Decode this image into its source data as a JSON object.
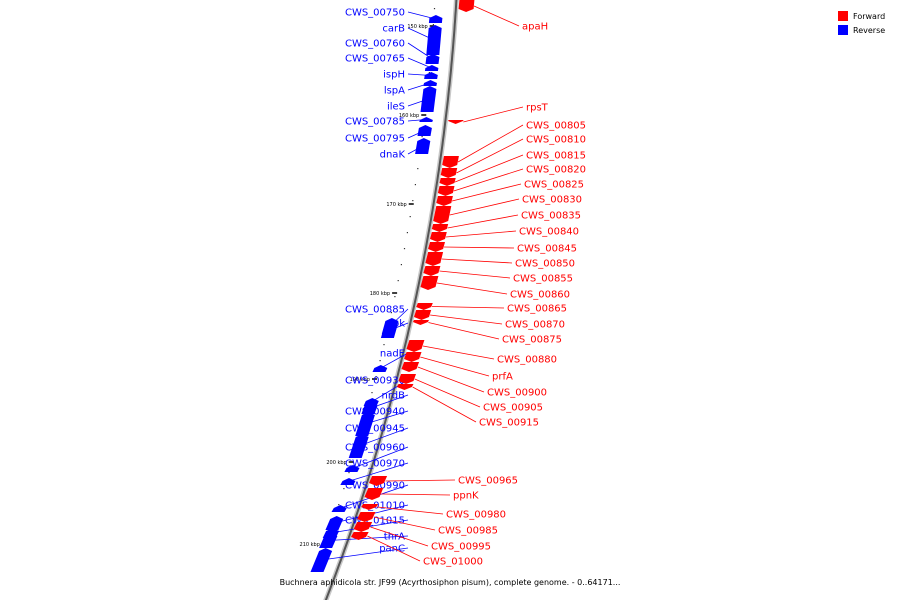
{
  "legend": {
    "forward_label": "Forward",
    "reverse_label": "Reverse",
    "forward_color": "#ff0000",
    "reverse_color": "#0000ff"
  },
  "caption": "Buchnera aphidicola str. JF99 (Acyrthosiphon pisum), complete genome. - 0..64171...",
  "ticks": [
    "150 kbp",
    "160 kbp",
    "170 kbp",
    "180 kbp",
    "190 kbp",
    "200 kbp",
    "210 kbp"
  ],
  "reverse_genes": [
    "CWS_00750",
    "carB",
    "CWS_00760",
    "CWS_00765",
    "ispH",
    "lspA",
    "ileS",
    "CWS_00785",
    "CWS_00795",
    "dnaK",
    "CWS_00885",
    "ipk",
    "nadE",
    "CWS_00930",
    "nrdB",
    "CWS_00940",
    "CWS_00945",
    "CWS_00960",
    "CWS_00970",
    "CWS_00990",
    "CWS_01010",
    "CWS_01015",
    "thrA",
    "panC"
  ],
  "forward_genes": [
    "apaH",
    "rpsT",
    "CWS_00805",
    "CWS_00810",
    "CWS_00815",
    "CWS_00820",
    "CWS_00825",
    "CWS_00830",
    "CWS_00835",
    "CWS_00840",
    "CWS_00845",
    "CWS_00850",
    "CWS_00855",
    "CWS_00860",
    "CWS_00865",
    "CWS_00870",
    "CWS_00875",
    "CWS_00880",
    "prfA",
    "CWS_00900",
    "CWS_00905",
    "CWS_00915",
    "CWS_00965",
    "ppnK",
    "CWS_00980",
    "CWS_00985",
    "CWS_00995",
    "CWS_01000"
  ]
}
